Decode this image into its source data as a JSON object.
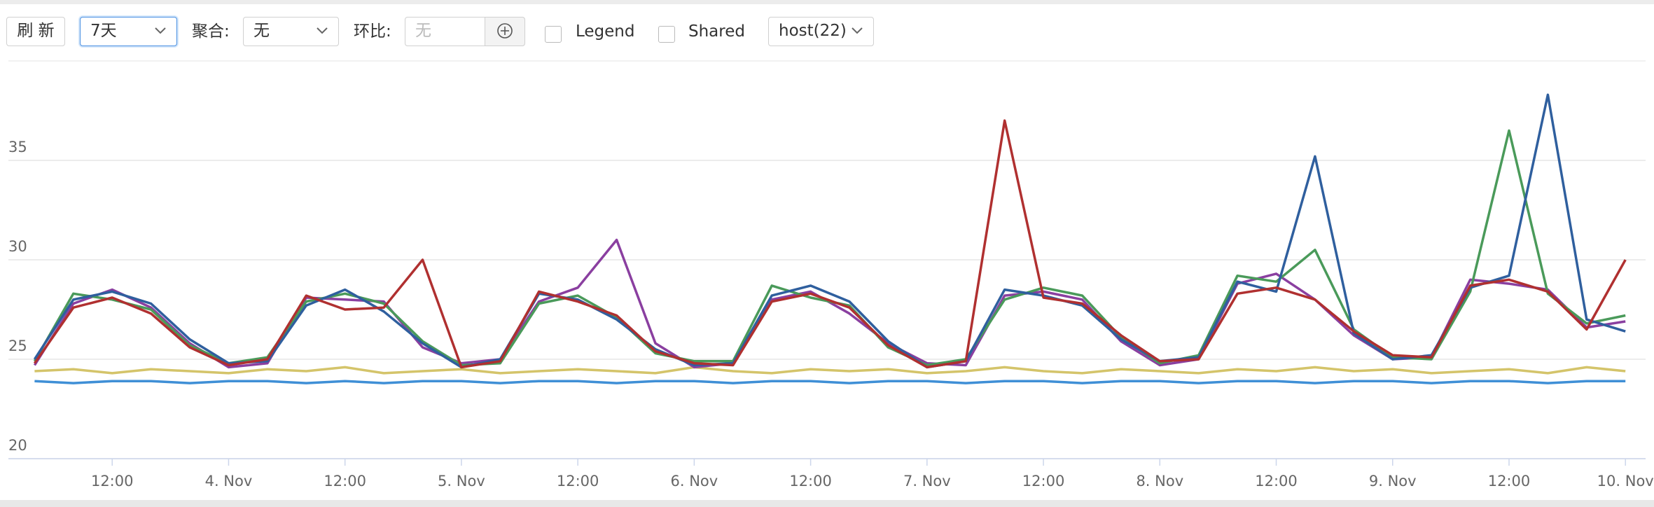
{
  "toolbar": {
    "refresh": "刷 新",
    "range": "7天",
    "aggregate_label": "聚合:",
    "aggregate_value": "无",
    "compare_label": "环比:",
    "compare_placeholder": "无",
    "legend_checkbox": "Legend",
    "shared_checkbox": "Shared",
    "host_select": "host(22)"
  },
  "chart_data": {
    "type": "line",
    "x": [
      4,
      8,
      12,
      16,
      20,
      24,
      28,
      32,
      36,
      40,
      44,
      48,
      52,
      56,
      60,
      64,
      68,
      72,
      76,
      80,
      84,
      88,
      92,
      96,
      100,
      104,
      108,
      112,
      116,
      120,
      124,
      128,
      132,
      136,
      140,
      144,
      148,
      152,
      156,
      160,
      164,
      168
    ],
    "xlim": [
      1.3,
      170.8
    ],
    "xticks": [
      {
        "value": 12,
        "label": "12:00"
      },
      {
        "value": 24,
        "label": "4. Nov"
      },
      {
        "value": 36,
        "label": "12:00"
      },
      {
        "value": 48,
        "label": "5. Nov"
      },
      {
        "value": 60,
        "label": "12:00"
      },
      {
        "value": 72,
        "label": "6. Nov"
      },
      {
        "value": 84,
        "label": "12:00"
      },
      {
        "value": 96,
        "label": "7. Nov"
      },
      {
        "value": 108,
        "label": "12:00"
      },
      {
        "value": 120,
        "label": "8. Nov"
      },
      {
        "value": 132,
        "label": "12:00"
      },
      {
        "value": 144,
        "label": "9. Nov"
      },
      {
        "value": 156,
        "label": "12:00"
      },
      {
        "value": 168,
        "label": "10. Nov"
      }
    ],
    "ylim": [
      20,
      40
    ],
    "yticks": [
      20,
      25,
      30,
      35
    ],
    "grid": true,
    "series": [
      {
        "color": "#3f8fd6",
        "values": [
          23.9,
          23.8,
          23.9,
          23.9,
          23.8,
          23.9,
          23.9,
          23.8,
          23.9,
          23.8,
          23.9,
          23.9,
          23.8,
          23.9,
          23.9,
          23.8,
          23.9,
          23.9,
          23.8,
          23.9,
          23.9,
          23.8,
          23.9,
          23.9,
          23.8,
          23.9,
          23.9,
          23.8,
          23.9,
          23.9,
          23.8,
          23.9,
          23.9,
          23.8,
          23.9,
          23.9,
          23.8,
          23.9,
          23.9,
          23.8,
          23.9,
          23.9
        ]
      },
      {
        "color": "#d4c46a",
        "values": [
          24.4,
          24.5,
          24.3,
          24.5,
          24.4,
          24.3,
          24.5,
          24.4,
          24.6,
          24.3,
          24.4,
          24.5,
          24.3,
          24.4,
          24.5,
          24.4,
          24.3,
          24.6,
          24.4,
          24.3,
          24.5,
          24.4,
          24.5,
          24.3,
          24.4,
          24.6,
          24.4,
          24.3,
          24.5,
          24.4,
          24.3,
          24.5,
          24.4,
          24.6,
          24.4,
          24.5,
          24.3,
          24.4,
          24.5,
          24.3,
          24.6,
          24.4
        ]
      },
      {
        "color": "#8a3fa0",
        "values": [
          24.7,
          27.8,
          28.5,
          27.6,
          25.8,
          24.6,
          24.8,
          28.1,
          28.0,
          27.9,
          25.6,
          24.8,
          25.0,
          27.9,
          28.6,
          31.0,
          25.8,
          24.6,
          24.8,
          28.0,
          28.4,
          27.3,
          25.8,
          24.8,
          24.7,
          28.2,
          28.4,
          28.0,
          25.9,
          24.7,
          25.0,
          28.8,
          29.3,
          28.0,
          26.2,
          25.0,
          25.1,
          29.0,
          28.8,
          28.5,
          26.6,
          26.9
        ]
      },
      {
        "color": "#4a9a5a",
        "values": [
          24.9,
          28.3,
          28.0,
          27.5,
          25.7,
          24.8,
          25.1,
          27.9,
          28.3,
          27.8,
          25.9,
          24.7,
          24.8,
          27.8,
          28.2,
          27.1,
          25.3,
          24.9,
          24.9,
          28.7,
          28.1,
          27.7,
          25.6,
          24.7,
          25.0,
          28.0,
          28.6,
          28.2,
          26.1,
          24.8,
          25.2,
          29.2,
          28.9,
          30.5,
          26.5,
          25.1,
          25.0,
          28.4,
          36.5,
          28.3,
          26.8,
          27.2
        ]
      },
      {
        "color": "#2f5f9e",
        "values": [
          25.0,
          28.0,
          28.4,
          27.8,
          26.0,
          24.8,
          24.9,
          27.7,
          28.5,
          27.4,
          25.8,
          24.6,
          25.0,
          28.3,
          28.0,
          27.0,
          25.5,
          24.7,
          24.8,
          28.2,
          28.7,
          27.9,
          25.9,
          24.6,
          24.9,
          28.5,
          28.2,
          27.7,
          26.0,
          24.9,
          25.1,
          28.9,
          28.4,
          35.2,
          26.3,
          25.0,
          25.2,
          28.6,
          29.2,
          38.3,
          27.0,
          26.4
        ]
      },
      {
        "color": "#b03030",
        "values": [
          24.8,
          27.6,
          28.1,
          27.3,
          25.6,
          24.7,
          25.0,
          28.2,
          27.5,
          27.6,
          30.0,
          24.6,
          24.9,
          28.4,
          27.9,
          27.2,
          25.4,
          24.8,
          24.7,
          27.9,
          28.3,
          27.6,
          25.7,
          24.6,
          24.9,
          37.0,
          28.1,
          27.8,
          26.2,
          24.9,
          25.0,
          28.3,
          28.6,
          28.0,
          26.4,
          25.2,
          25.1,
          28.7,
          29.0,
          28.4,
          26.5,
          30.0
        ]
      }
    ]
  }
}
